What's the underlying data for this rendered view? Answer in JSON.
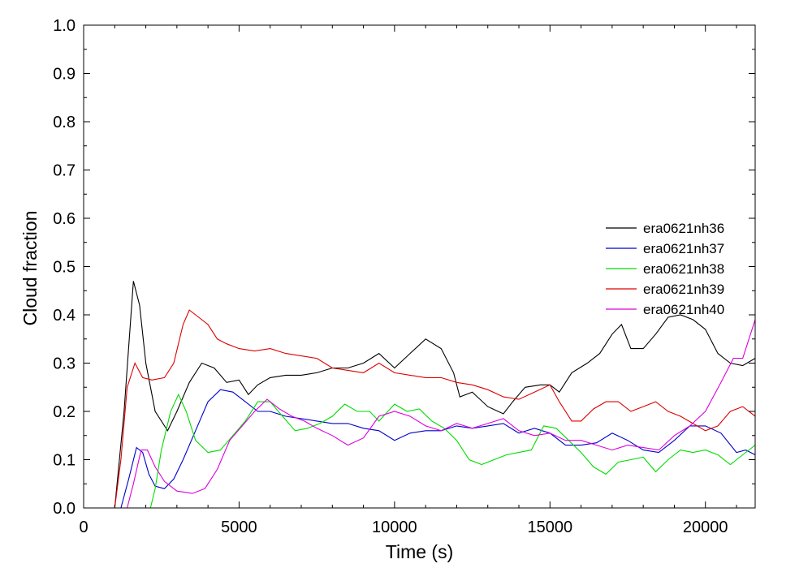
{
  "chart_data": {
    "type": "line",
    "title": "",
    "xlabel": "Time (s)",
    "ylabel": "Cloud fraction",
    "xlim": [
      0,
      21600
    ],
    "ylim": [
      0.0,
      1.0
    ],
    "grid": false,
    "legend_position": "right",
    "x_ticks": [
      0,
      5000,
      10000,
      15000,
      20000
    ],
    "x_tick_labels": [
      "0",
      "5000",
      "10000",
      "15000",
      "20000"
    ],
    "y_ticks": [
      0.0,
      0.1,
      0.2,
      0.3,
      0.4,
      0.5,
      0.6,
      0.7,
      0.8,
      0.9,
      1.0
    ],
    "y_tick_labels": [
      "0.0",
      "0.1",
      "0.2",
      "0.3",
      "0.4",
      "0.5",
      "0.6",
      "0.7",
      "0.8",
      "0.9",
      "1.0"
    ],
    "series": [
      {
        "name": "era0621nh36",
        "color": "#000000",
        "points": [
          [
            0,
            0
          ],
          [
            1000,
            0
          ],
          [
            1300,
            0.2
          ],
          [
            1600,
            0.47
          ],
          [
            1800,
            0.42
          ],
          [
            2000,
            0.3
          ],
          [
            2300,
            0.2
          ],
          [
            2700,
            0.16
          ],
          [
            3000,
            0.2
          ],
          [
            3400,
            0.26
          ],
          [
            3800,
            0.3
          ],
          [
            4200,
            0.29
          ],
          [
            4600,
            0.26
          ],
          [
            5000,
            0.265
          ],
          [
            5300,
            0.235
          ],
          [
            5600,
            0.255
          ],
          [
            6000,
            0.27
          ],
          [
            6500,
            0.275
          ],
          [
            7000,
            0.275
          ],
          [
            7500,
            0.28
          ],
          [
            8000,
            0.29
          ],
          [
            8500,
            0.29
          ],
          [
            9000,
            0.3
          ],
          [
            9500,
            0.32
          ],
          [
            10000,
            0.29
          ],
          [
            10500,
            0.32
          ],
          [
            11000,
            0.35
          ],
          [
            11500,
            0.33
          ],
          [
            11900,
            0.28
          ],
          [
            12100,
            0.23
          ],
          [
            12500,
            0.24
          ],
          [
            13000,
            0.21
          ],
          [
            13500,
            0.195
          ],
          [
            13800,
            0.22
          ],
          [
            14200,
            0.25
          ],
          [
            14700,
            0.255
          ],
          [
            15000,
            0.255
          ],
          [
            15300,
            0.24
          ],
          [
            15700,
            0.28
          ],
          [
            16200,
            0.3
          ],
          [
            16600,
            0.32
          ],
          [
            17000,
            0.36
          ],
          [
            17300,
            0.38
          ],
          [
            17600,
            0.33
          ],
          [
            18000,
            0.33
          ],
          [
            18400,
            0.36
          ],
          [
            18800,
            0.395
          ],
          [
            19200,
            0.4
          ],
          [
            19600,
            0.39
          ],
          [
            20000,
            0.37
          ],
          [
            20400,
            0.32
          ],
          [
            20800,
            0.3
          ],
          [
            21200,
            0.295
          ],
          [
            21600,
            0.31
          ]
        ]
      },
      {
        "name": "era0621nh37",
        "color": "#0000cc",
        "points": [
          [
            0,
            0
          ],
          [
            1200,
            0
          ],
          [
            1450,
            0.06
          ],
          [
            1700,
            0.125
          ],
          [
            1900,
            0.115
          ],
          [
            2100,
            0.07
          ],
          [
            2300,
            0.045
          ],
          [
            2600,
            0.04
          ],
          [
            2900,
            0.06
          ],
          [
            3200,
            0.1
          ],
          [
            3600,
            0.16
          ],
          [
            4000,
            0.22
          ],
          [
            4400,
            0.245
          ],
          [
            4800,
            0.24
          ],
          [
            5200,
            0.22
          ],
          [
            5600,
            0.2
          ],
          [
            6000,
            0.2
          ],
          [
            6500,
            0.19
          ],
          [
            7000,
            0.185
          ],
          [
            7500,
            0.18
          ],
          [
            8000,
            0.175
          ],
          [
            8500,
            0.175
          ],
          [
            9000,
            0.165
          ],
          [
            9500,
            0.16
          ],
          [
            10000,
            0.14
          ],
          [
            10500,
            0.155
          ],
          [
            11000,
            0.16
          ],
          [
            11500,
            0.16
          ],
          [
            12000,
            0.17
          ],
          [
            12500,
            0.165
          ],
          [
            13000,
            0.17
          ],
          [
            13500,
            0.175
          ],
          [
            14000,
            0.155
          ],
          [
            14500,
            0.165
          ],
          [
            15000,
            0.155
          ],
          [
            15500,
            0.13
          ],
          [
            16000,
            0.13
          ],
          [
            16500,
            0.135
          ],
          [
            17000,
            0.155
          ],
          [
            17500,
            0.14
          ],
          [
            18000,
            0.12
          ],
          [
            18500,
            0.115
          ],
          [
            19000,
            0.14
          ],
          [
            19500,
            0.17
          ],
          [
            20000,
            0.17
          ],
          [
            20500,
            0.155
          ],
          [
            21000,
            0.115
          ],
          [
            21300,
            0.12
          ],
          [
            21600,
            0.11
          ]
        ]
      },
      {
        "name": "era0621nh38",
        "color": "#00dd00",
        "points": [
          [
            0,
            0
          ],
          [
            2150,
            0
          ],
          [
            2300,
            0.04
          ],
          [
            2500,
            0.12
          ],
          [
            2800,
            0.2
          ],
          [
            3050,
            0.235
          ],
          [
            3300,
            0.2
          ],
          [
            3600,
            0.14
          ],
          [
            4000,
            0.115
          ],
          [
            4400,
            0.12
          ],
          [
            4800,
            0.15
          ],
          [
            5200,
            0.18
          ],
          [
            5600,
            0.22
          ],
          [
            6000,
            0.22
          ],
          [
            6400,
            0.19
          ],
          [
            6800,
            0.16
          ],
          [
            7200,
            0.165
          ],
          [
            7600,
            0.175
          ],
          [
            8000,
            0.19
          ],
          [
            8400,
            0.215
          ],
          [
            8800,
            0.2
          ],
          [
            9200,
            0.2
          ],
          [
            9500,
            0.18
          ],
          [
            10000,
            0.215
          ],
          [
            10400,
            0.2
          ],
          [
            10800,
            0.205
          ],
          [
            11200,
            0.18
          ],
          [
            11600,
            0.165
          ],
          [
            12000,
            0.14
          ],
          [
            12400,
            0.1
          ],
          [
            12800,
            0.09
          ],
          [
            13200,
            0.1
          ],
          [
            13600,
            0.11
          ],
          [
            14000,
            0.115
          ],
          [
            14400,
            0.12
          ],
          [
            14800,
            0.17
          ],
          [
            15200,
            0.165
          ],
          [
            15600,
            0.14
          ],
          [
            16000,
            0.115
          ],
          [
            16400,
            0.085
          ],
          [
            16800,
            0.07
          ],
          [
            17200,
            0.095
          ],
          [
            17600,
            0.1
          ],
          [
            18000,
            0.105
          ],
          [
            18400,
            0.075
          ],
          [
            18800,
            0.1
          ],
          [
            19200,
            0.12
          ],
          [
            19600,
            0.115
          ],
          [
            20000,
            0.12
          ],
          [
            20400,
            0.11
          ],
          [
            20800,
            0.09
          ],
          [
            21200,
            0.11
          ],
          [
            21600,
            0.13
          ]
        ]
      },
      {
        "name": "era0621nh39",
        "color": "#dd0000",
        "points": [
          [
            0,
            0
          ],
          [
            1000,
            0
          ],
          [
            1200,
            0.1
          ],
          [
            1400,
            0.25
          ],
          [
            1650,
            0.3
          ],
          [
            1900,
            0.27
          ],
          [
            2200,
            0.265
          ],
          [
            2600,
            0.27
          ],
          [
            2900,
            0.3
          ],
          [
            3200,
            0.38
          ],
          [
            3400,
            0.41
          ],
          [
            3700,
            0.395
          ],
          [
            4000,
            0.38
          ],
          [
            4300,
            0.35
          ],
          [
            4600,
            0.34
          ],
          [
            5000,
            0.33
          ],
          [
            5500,
            0.325
          ],
          [
            6000,
            0.33
          ],
          [
            6500,
            0.32
          ],
          [
            7000,
            0.315
          ],
          [
            7500,
            0.31
          ],
          [
            8000,
            0.29
          ],
          [
            8500,
            0.285
          ],
          [
            9000,
            0.28
          ],
          [
            9500,
            0.3
          ],
          [
            10000,
            0.28
          ],
          [
            10500,
            0.275
          ],
          [
            11000,
            0.27
          ],
          [
            11500,
            0.27
          ],
          [
            12000,
            0.26
          ],
          [
            12500,
            0.255
          ],
          [
            13000,
            0.245
          ],
          [
            13500,
            0.23
          ],
          [
            14000,
            0.225
          ],
          [
            14500,
            0.24
          ],
          [
            15000,
            0.255
          ],
          [
            15300,
            0.22
          ],
          [
            15700,
            0.18
          ],
          [
            16000,
            0.18
          ],
          [
            16400,
            0.205
          ],
          [
            16800,
            0.22
          ],
          [
            17200,
            0.22
          ],
          [
            17600,
            0.2
          ],
          [
            18000,
            0.21
          ],
          [
            18400,
            0.22
          ],
          [
            18800,
            0.2
          ],
          [
            19200,
            0.19
          ],
          [
            19600,
            0.175
          ],
          [
            20000,
            0.16
          ],
          [
            20400,
            0.17
          ],
          [
            20800,
            0.2
          ],
          [
            21200,
            0.21
          ],
          [
            21600,
            0.19
          ]
        ]
      },
      {
        "name": "era0621nh40",
        "color": "#dd00dd",
        "points": [
          [
            0,
            0
          ],
          [
            1400,
            0
          ],
          [
            1600,
            0.05
          ],
          [
            1850,
            0.12
          ],
          [
            2050,
            0.12
          ],
          [
            2300,
            0.085
          ],
          [
            2600,
            0.055
          ],
          [
            3000,
            0.035
          ],
          [
            3500,
            0.03
          ],
          [
            3900,
            0.04
          ],
          [
            4300,
            0.08
          ],
          [
            4700,
            0.14
          ],
          [
            5100,
            0.17
          ],
          [
            5500,
            0.2
          ],
          [
            5900,
            0.225
          ],
          [
            6300,
            0.205
          ],
          [
            6700,
            0.19
          ],
          [
            7100,
            0.18
          ],
          [
            7500,
            0.165
          ],
          [
            8000,
            0.15
          ],
          [
            8500,
            0.13
          ],
          [
            9000,
            0.145
          ],
          [
            9500,
            0.19
          ],
          [
            10000,
            0.2
          ],
          [
            10500,
            0.19
          ],
          [
            11000,
            0.17
          ],
          [
            11500,
            0.16
          ],
          [
            12000,
            0.175
          ],
          [
            12500,
            0.165
          ],
          [
            13000,
            0.175
          ],
          [
            13500,
            0.185
          ],
          [
            14000,
            0.16
          ],
          [
            14500,
            0.15
          ],
          [
            15000,
            0.155
          ],
          [
            15500,
            0.14
          ],
          [
            16000,
            0.14
          ],
          [
            16500,
            0.13
          ],
          [
            17000,
            0.12
          ],
          [
            17500,
            0.13
          ],
          [
            18000,
            0.125
          ],
          [
            18500,
            0.12
          ],
          [
            19000,
            0.15
          ],
          [
            19500,
            0.17
          ],
          [
            20000,
            0.2
          ],
          [
            20500,
            0.26
          ],
          [
            20900,
            0.31
          ],
          [
            21200,
            0.31
          ],
          [
            21600,
            0.39
          ]
        ]
      }
    ]
  }
}
